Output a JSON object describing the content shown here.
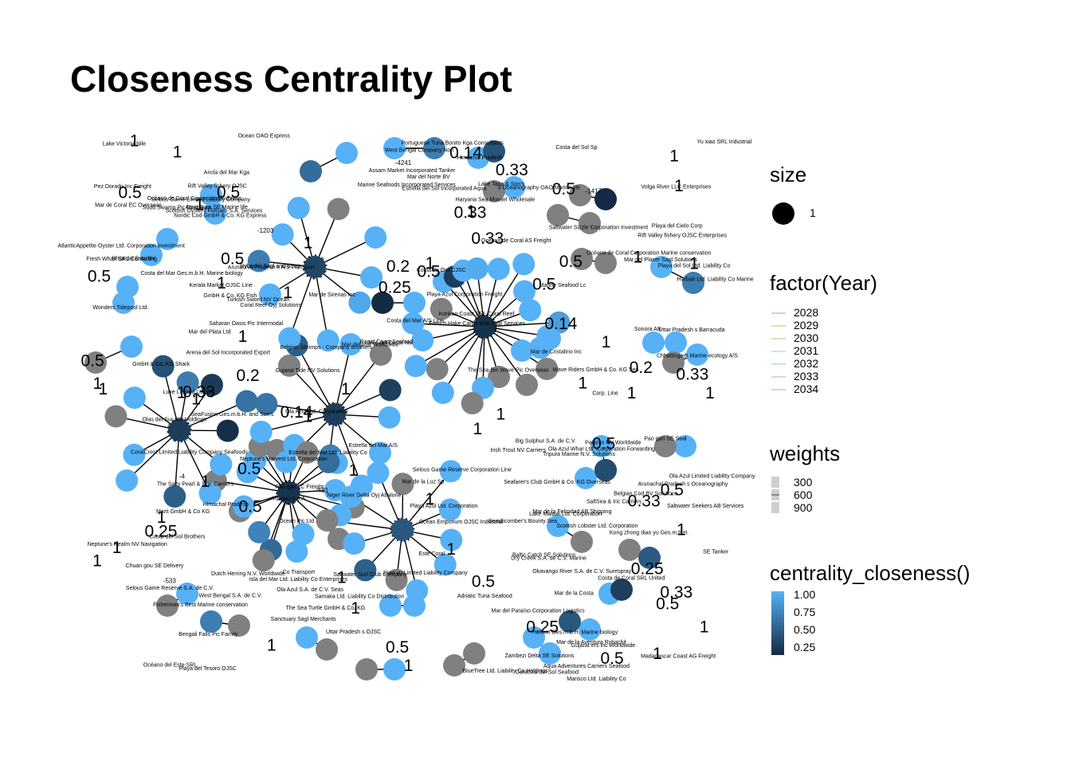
{
  "title": "Closeness Centrality Plot",
  "chart_data": {
    "type": "network",
    "title": "Closeness Centrality Plot",
    "legends": {
      "size": {
        "title": "size",
        "entries": [
          "1"
        ]
      },
      "year": {
        "title": "factor(Year)",
        "entries": [
          "2028",
          "2029",
          "2030",
          "2031",
          "2032",
          "2033",
          "2034"
        ],
        "colors": [
          "#f4c7c3",
          "#e6dcb4",
          "#d6e6b4",
          "#c0ecd8",
          "#bfe5ef",
          "#d4d8f0",
          "#f0c8e4"
        ]
      },
      "weights": {
        "title": "weights",
        "entries": [
          "300",
          "600",
          "900"
        ]
      },
      "closeness": {
        "title": "centrality_closeness()",
        "entries": [
          "1.00",
          "0.75",
          "0.50",
          "0.25"
        ],
        "low_color": "#132b43",
        "high_color": "#56b1f7"
      }
    },
    "hubs": [
      {
        "label": "Mar de Coral EC Overseas",
        "closeness": 0.05
      },
      {
        "label": "Costa de Coral SRL United",
        "closeness": 0.06
      },
      {
        "label": "Assam Market Incorporated Tanker",
        "closeness": 0.14
      },
      {
        "label": "Neptune's Harvest Ltd. Corporation",
        "closeness": 0.33
      },
      {
        "label": "Caracola del Sol Seafood",
        "closeness": 0.14
      },
      {
        "label": "Sanctuary Sagl Merchants",
        "closeness": 0.2
      }
    ],
    "node_labels": [
      "Portuguese Tuna Bonito Kga Consultants",
      "Wave Riders GmbH & Co. KG Sea",
      "Baltic Catch SE Solutions",
      "Océano del Este SRL",
      "Gujarat ers Inc Worldwide",
      "Turkish Sword NV Ocean",
      "Uttar Pradesh s OJSC",
      "Mar del Paraíso Corporation Logistics",
      "Mar del Mar Worldwide",
      "Saltwater Sizzle Corporation Investment",
      "Ola Azul Whar Ltd. Corporation Forwarding",
      "French Hake Cargo ship Sagl Services",
      "Lake Tana & Son's",
      "Mar del Oeste NV",
      "Olas del Sur A/S Holdings",
      "Ocean OAO Express",
      "Ola Azul Limited Liability Company",
      "Rybachit Sagl and Sons",
      "Playa del Sol Ltd. Liability Co",
      "Seafarer's Club GmbH & Co. KG Overseas",
      "Samaka Ltd. Liability Co Distribution",
      "Sudd Swamp Pic Overseas",
      "Neptune's Realm NV Navigation",
      "Belgian Cod BV Solutions",
      "Lake Victoria Nile",
      "GmbH & Co. KG Fish",
      "Yu xiao SRL Industrial",
      "Brisa del Este BV",
      "Selous Game Reserve Corporation Line",
      "Costa del Mar Ges.m.b.H. Marine biology",
      "Marine Seafoods Incorporated Services",
      "West Bengal Company Nori",
      "Ocean Emporium OJSC Industrial",
      "Zambezi Delta SE Solutions",
      "Sanctuary Sagl Merchants",
      "Beachcomber's Bounty Sea",
      "Mar de Coral EC Overseas",
      "Ola Azul Ltd. Corporation",
      "Tripura Marine N.V. Solutions",
      "Aqua Adventures Carriers Seafood",
      "Mar del Placer Sagl Solutions",
      "Himachal Pradesh",
      "Co Transport",
      "Belgian Shrimps - Company Brothers",
      "Coral Reef Oyj Solutions",
      "Madagascar Coast AG Freight",
      "Wonders Tidepool Ltd.",
      "Ola Azul S.A. de C.V. Seas",
      "SE Tanker",
      "Saharan Oasis Pic Intermodal",
      "Big Sulphur S.A. de C.V.",
      "Paraíso NV Worldwide",
      "Isla del Mar Ltd. Liability Co Enterprises",
      "Mar de la Costa",
      "Mar de la Felicidad AB Shipping",
      "Himachal Pradesh",
      "Marisco Ltd. Liability Co",
      "Luxe Limited Liability",
      "Rapid Coast Seafood",
      "Mar del Plata Ltd",
      "Arunachal Pradesh s A/S Transport",
      "Nordic Cod GmbH & Co. KG Express",
      "Kerala Market OJSC Line",
      "Costa del Mar A/S Line",
      "Marit GmbH & Co KG",
      "Ancla del Mar Kga",
      "Rift Valley fishery OJSC",
      "Konkan Coast SRL Coral Reef",
      "Mar del Norte BV",
      "Adriatic Tuna Seafood",
      "Chhattisgarh Marine ecology A/S",
      "Mar de la Luz Sp",
      "Bengali Falls Pic Family",
      "Costa de Oro CJSC",
      "Assam Market Incorporated Tanker",
      "The Salty Pearl & N.V. Carriers",
      "Océano de Coral AS Freight",
      "Scottish Lobster Ltd. Corporation",
      "Sonora AB",
      "Irish Trout NV Carriers",
      "Hohhot Ges.m.b.H. Marine biology",
      "Mar de Cristalino Inc",
      "Kong zhong diao yu Ges.m.b.H.",
      "Caracola del Sol Seafood",
      "Pez Dorado Inc Freight",
      "BlueTree Ltd. Liability Co Holdings",
      "Harbah Ltd. Liability Co Marine",
      "Chuan gou SE Delivery",
      "Yu xiao S.p.A",
      "Volga River LLC Enterprises",
      "Dutch Herring N.V. Worldwide",
      "Selous Game Limited Liability Company",
      "Costa de Coral SRL United",
      "Corp. Line",
      "Playa Azul Ltd. Corporation",
      "Costa del Sol Brothers",
      "Aqua Aura SE Marine life",
      "SaltSea & Inc Carriers",
      "AtlanticAppetite Oyster Ltd. Corporation Investment",
      "Haryana Sea Mussel Wholesale",
      "Gujarat Tide NV Solutions",
      "Pao gan SE Seal",
      "Este Coral",
      "Mar de Sirenas Inc",
      "Océano de Coral Corporation Express",
      "Arena del Sol Incorporated Export",
      "Neptune's Harvest Ltd. Corporation",
      "Fresh Wharf SRL Consulting",
      "Uttar Pradesh s Barracuda",
      "Niger River Delta Oyj Abalone",
      "Océano de Coral Corporation Marine conservation",
      "Playa del Tesoro OJSC",
      "Selous Game Reserve S.A. de C.V.",
      "GmbH & Co. KG Shark",
      "CoralCrest Limited Liability Company Seafoods",
      "The Sea Bin Wave Pic Overseas",
      "Playa del Cielo Corp",
      "SeaFusion Ges.m.b.H. and Son's",
      "Saltwater Surf Club Company",
      "Okavango River S.A. de C.V. Surespray",
      "3 Oceanography OAO Marine life",
      "Marine Seafood Lc",
      "Arunachal Pradesh s Oceanography",
      "Saltwater Seekers AB Services",
      "Rift Valley fishery OJSC Enterprises",
      "Costa del Sol Sp",
      "Estrella del Mar Ltd. Liability Co",
      "The Sea Turtle GmbH & Co. KG",
      "Playa Azul Corporation Freight",
      "Scottish Oysters Flotsam S.A. Services",
      "Pao gan LC Freight",
      "Dry Creek S.A. de C.V. Marine",
      "Lake Malawi Ltd. Corporation",
      "Fisherman's Best Marine conservation",
      "Diao yu Limited Liability Company",
      "Estrella del Mar A/S",
      "West Bengal S.A. de C.V.",
      "Ocean Pic Ltd",
      "Estrella del Sol Incorporated Aqua",
      "Mar de la Aventura Rybachit"
    ],
    "edge_labels": [
      "1",
      "1",
      "0.2",
      "1",
      "1",
      "1",
      "1",
      "0.5",
      "1",
      "1",
      "1",
      "1",
      "0.5",
      "1",
      "1",
      "0.25",
      "1",
      "0.2",
      "1",
      "1",
      "1",
      "0.5",
      "1",
      "1",
      "0.33",
      "0.33",
      "0.5",
      "1",
      "1",
      "1",
      "0.33",
      "0.33",
      "0.25",
      "1",
      "0.5",
      "1",
      "1",
      "0.14",
      "1",
      "0.5",
      "0.5",
      "1",
      "1",
      "1",
      "1",
      "0.5",
      "0.14",
      "1",
      "0.5",
      "0.25",
      "0.5",
      "0.2",
      "0.5",
      "0.5",
      "1",
      "1",
      "0.5",
      "1",
      "0.33",
      "0.14",
      "0.5",
      "1",
      "0.5",
      "0.33",
      "0.25",
      "0.5",
      "1",
      "1",
      "0.5",
      "1",
      "1",
      "0.33",
      "1"
    ],
    "numeric_labels": [
      "-1417",
      "-1203",
      "-4241",
      "-481",
      "-533",
      "-4"
    ]
  }
}
